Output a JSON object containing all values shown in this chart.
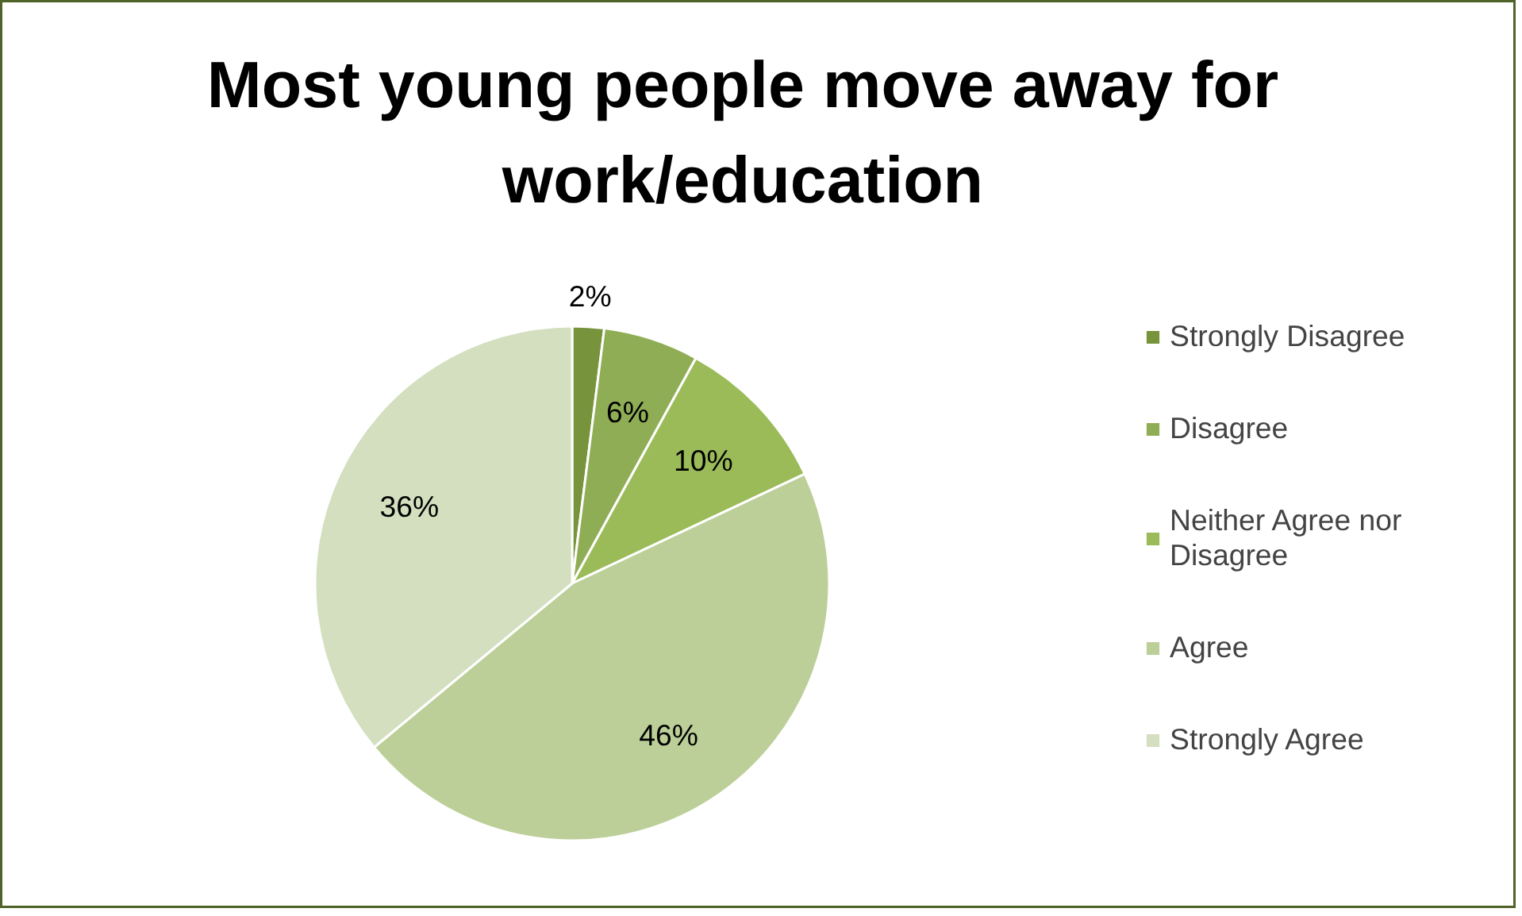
{
  "chart_data": {
    "type": "pie",
    "title": "Most young people move away for work/education",
    "categories": [
      "Strongly Disagree",
      "Disagree",
      "Neither Agree nor Disagree",
      "Agree",
      "Strongly Agree"
    ],
    "values": [
      2,
      6,
      10,
      46,
      36
    ],
    "colors": [
      "#77933c",
      "#8fad55",
      "#9bbb59",
      "#bccf98",
      "#d3dfbe"
    ],
    "value_labels": [
      "2%",
      "6%",
      "10%",
      "46%",
      "36%"
    ],
    "legend": "right"
  }
}
